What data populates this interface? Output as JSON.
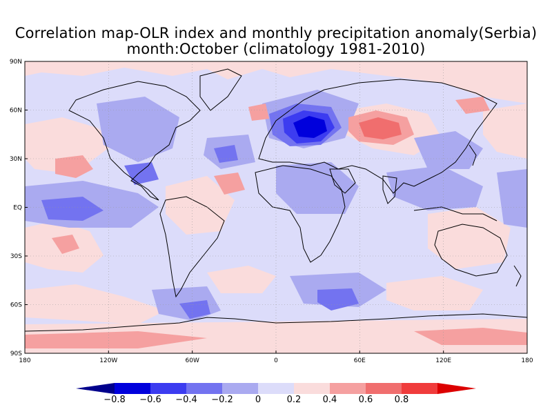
{
  "title_line1": "Correlation map-OLR index and monthly precipitation anomaly(Serbia)",
  "title_line2": "month:October (climatology 1981-2010)",
  "lat_labels": [
    "90N",
    "60N",
    "30N",
    "EQ",
    "30S",
    "60S",
    "90S"
  ],
  "lon_labels": [
    "180",
    "120W",
    "60W",
    "0",
    "60E",
    "120E",
    "180"
  ],
  "colorbar": {
    "ticks": [
      "-0.8",
      "-0.6",
      "-0.4",
      "-0.2",
      "0",
      "0.2",
      "0.4",
      "0.6",
      "0.8"
    ],
    "colors": [
      "#00008c",
      "#0000dc",
      "#3c3cf0",
      "#7373f0",
      "#aaaaf0",
      "#dcdcfa",
      "#fadcdc",
      "#f5a0a0",
      "#f06e6e",
      "#f03c3c",
      "#dc0000"
    ]
  },
  "map": {
    "lon_range": [
      -180,
      180
    ],
    "lat_range": [
      -90,
      90
    ],
    "grid_spacing_lon": 60,
    "grid_spacing_lat": 30,
    "field_colors": {
      "strong_neg": "#3c3cf0",
      "mid_neg": "#7373f0",
      "weak_neg": "#aaaaf0",
      "near_zero": "#dcdcfa",
      "weak_pos": "#fadcdc",
      "mid_pos": "#f5a0a0",
      "strong_pos": "#f06e6e",
      "very_strong_neg": "#0000dc"
    }
  }
}
